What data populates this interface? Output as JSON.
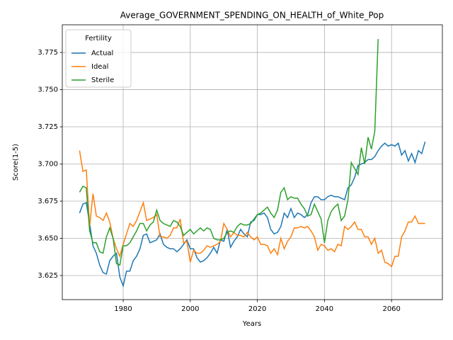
{
  "chart_data": {
    "type": "line",
    "title": "Average_GOVERNMENT_SPENDING_ON_HEALTH_of_White_Pop",
    "xlabel": "Years",
    "ylabel": "Score(1-5)",
    "legend_title": "Fertility",
    "legend_loc": "upper left",
    "grid": true,
    "xlim": [
      1961.85,
      2075.15
    ],
    "ylim": [
      3.6088,
      3.7936
    ],
    "xticks": [
      1980,
      2000,
      2020,
      2040,
      2060
    ],
    "yticks": [
      3.625,
      {
        "value": 3.65,
        "label": "3.650"
      },
      3.675,
      {
        "value": 3.7,
        "label": "3.700"
      },
      3.725,
      {
        "value": 3.75,
        "label": "3.750"
      },
      3.775
    ],
    "x": [
      1967,
      1968,
      1969,
      1970,
      1971,
      1972,
      1973,
      1974,
      1975,
      1976,
      1977,
      1978,
      1979,
      1980,
      1981,
      1982,
      1983,
      1984,
      1985,
      1986,
      1987,
      1988,
      1989,
      1990,
      1991,
      1992,
      1993,
      1994,
      1995,
      1996,
      1997,
      1998,
      1999,
      2000,
      2001,
      2002,
      2003,
      2004,
      2005,
      2006,
      2007,
      2008,
      2009,
      2010,
      2011,
      2012,
      2013,
      2014,
      2015,
      2016,
      2017,
      2018,
      2019,
      2020,
      2021,
      2022,
      2023,
      2024,
      2025,
      2026,
      2027,
      2028,
      2029,
      2030,
      2031,
      2032,
      2033,
      2034,
      2035,
      2036,
      2037,
      2038,
      2039,
      2040,
      2041,
      2042,
      2043,
      2044,
      2045,
      2046,
      2047,
      2048,
      2049,
      2050,
      2051,
      2052,
      2053,
      2054,
      2055,
      2056,
      2057,
      2058,
      2059,
      2060,
      2061,
      2062,
      2063,
      2064,
      2065,
      2066,
      2067,
      2068,
      2069,
      2070
    ],
    "series": [
      {
        "name": "Actual",
        "color": "#1f77b4",
        "values": [
          3.667,
          3.673,
          3.674,
          3.66,
          3.645,
          3.64,
          3.632,
          3.627,
          3.626,
          3.635,
          3.638,
          3.64,
          3.624,
          3.618,
          3.628,
          3.628,
          3.635,
          3.638,
          3.643,
          3.652,
          3.653,
          3.647,
          3.648,
          3.649,
          3.653,
          3.646,
          3.644,
          3.643,
          3.643,
          3.641,
          3.643,
          3.646,
          3.649,
          3.643,
          3.643,
          3.637,
          3.634,
          3.635,
          3.637,
          3.64,
          3.644,
          3.64,
          3.649,
          3.648,
          3.656,
          3.644,
          3.648,
          3.651,
          3.656,
          3.653,
          3.651,
          3.661,
          3.662,
          3.666,
          3.666,
          3.667,
          3.664,
          3.656,
          3.653,
          3.654,
          3.658,
          3.667,
          3.664,
          3.67,
          3.664,
          3.667,
          3.666,
          3.664,
          3.666,
          3.674,
          3.678,
          3.678,
          3.676,
          3.676,
          3.678,
          3.679,
          3.678,
          3.678,
          3.677,
          3.676,
          3.684,
          3.686,
          3.691,
          3.699,
          3.7,
          3.701,
          3.703,
          3.703,
          3.705,
          3.709,
          3.712,
          3.714,
          3.712,
          3.713,
          3.712,
          3.714,
          3.706,
          3.709,
          3.702,
          3.707,
          3.701,
          3.709,
          3.707,
          3.715
        ]
      },
      {
        "name": "Ideal",
        "color": "#ff7f0e",
        "values": [
          3.709,
          3.695,
          3.696,
          3.658,
          3.68,
          3.665,
          3.664,
          3.662,
          3.667,
          3.661,
          3.65,
          3.643,
          3.638,
          3.646,
          3.653,
          3.66,
          3.658,
          3.662,
          3.668,
          3.674,
          3.662,
          3.663,
          3.664,
          3.666,
          3.651,
          3.651,
          3.65,
          3.652,
          3.657,
          3.657,
          3.663,
          3.647,
          3.648,
          3.634,
          3.642,
          3.64,
          3.64,
          3.642,
          3.645,
          3.644,
          3.645,
          3.646,
          3.648,
          3.66,
          3.656,
          3.651,
          3.654,
          3.652,
          3.652,
          3.651,
          3.654,
          3.651,
          3.649,
          3.651,
          3.646,
          3.646,
          3.645,
          3.64,
          3.643,
          3.639,
          3.65,
          3.643,
          3.648,
          3.651,
          3.657,
          3.657,
          3.658,
          3.657,
          3.658,
          3.655,
          3.651,
          3.642,
          3.646,
          3.645,
          3.642,
          3.643,
          3.641,
          3.646,
          3.645,
          3.658,
          3.656,
          3.658,
          3.661,
          3.656,
          3.656,
          3.651,
          3.651,
          3.646,
          3.65,
          3.64,
          3.642,
          3.634,
          3.633,
          3.631,
          3.638,
          3.638,
          3.651,
          3.655,
          3.661,
          3.661,
          3.665,
          3.66,
          3.66,
          3.66
        ]
      },
      {
        "name": "Sterile",
        "color": "#2ca02c",
        "values": [
          3.681,
          3.685,
          3.684,
          3.655,
          3.647,
          3.647,
          3.641,
          3.64,
          3.651,
          3.657,
          3.65,
          3.633,
          3.632,
          3.645,
          3.645,
          3.647,
          3.651,
          3.655,
          3.66,
          3.66,
          3.655,
          3.659,
          3.661,
          3.669,
          3.662,
          3.66,
          3.659,
          3.658,
          3.662,
          3.661,
          3.658,
          3.652,
          3.654,
          3.656,
          3.653,
          3.655,
          3.657,
          3.655,
          3.657,
          3.656,
          3.65,
          3.649,
          3.649,
          3.65,
          3.654,
          3.655,
          3.654,
          3.658,
          3.66,
          3.659,
          3.659,
          3.66,
          3.663,
          3.666,
          3.667,
          3.669,
          3.671,
          3.667,
          3.664,
          3.669,
          3.681,
          3.684,
          3.676,
          3.678,
          3.677,
          3.677,
          3.673,
          3.67,
          3.665,
          3.666,
          3.673,
          3.668,
          3.663,
          3.647,
          3.662,
          3.668,
          3.671,
          3.673,
          3.662,
          3.665,
          3.676,
          3.701,
          3.697,
          3.693,
          3.711,
          3.7,
          3.718,
          3.71,
          3.722,
          3.784,
          null,
          null,
          null,
          null,
          null,
          null,
          null,
          null,
          null,
          null,
          null,
          null,
          null,
          null
        ]
      }
    ]
  }
}
